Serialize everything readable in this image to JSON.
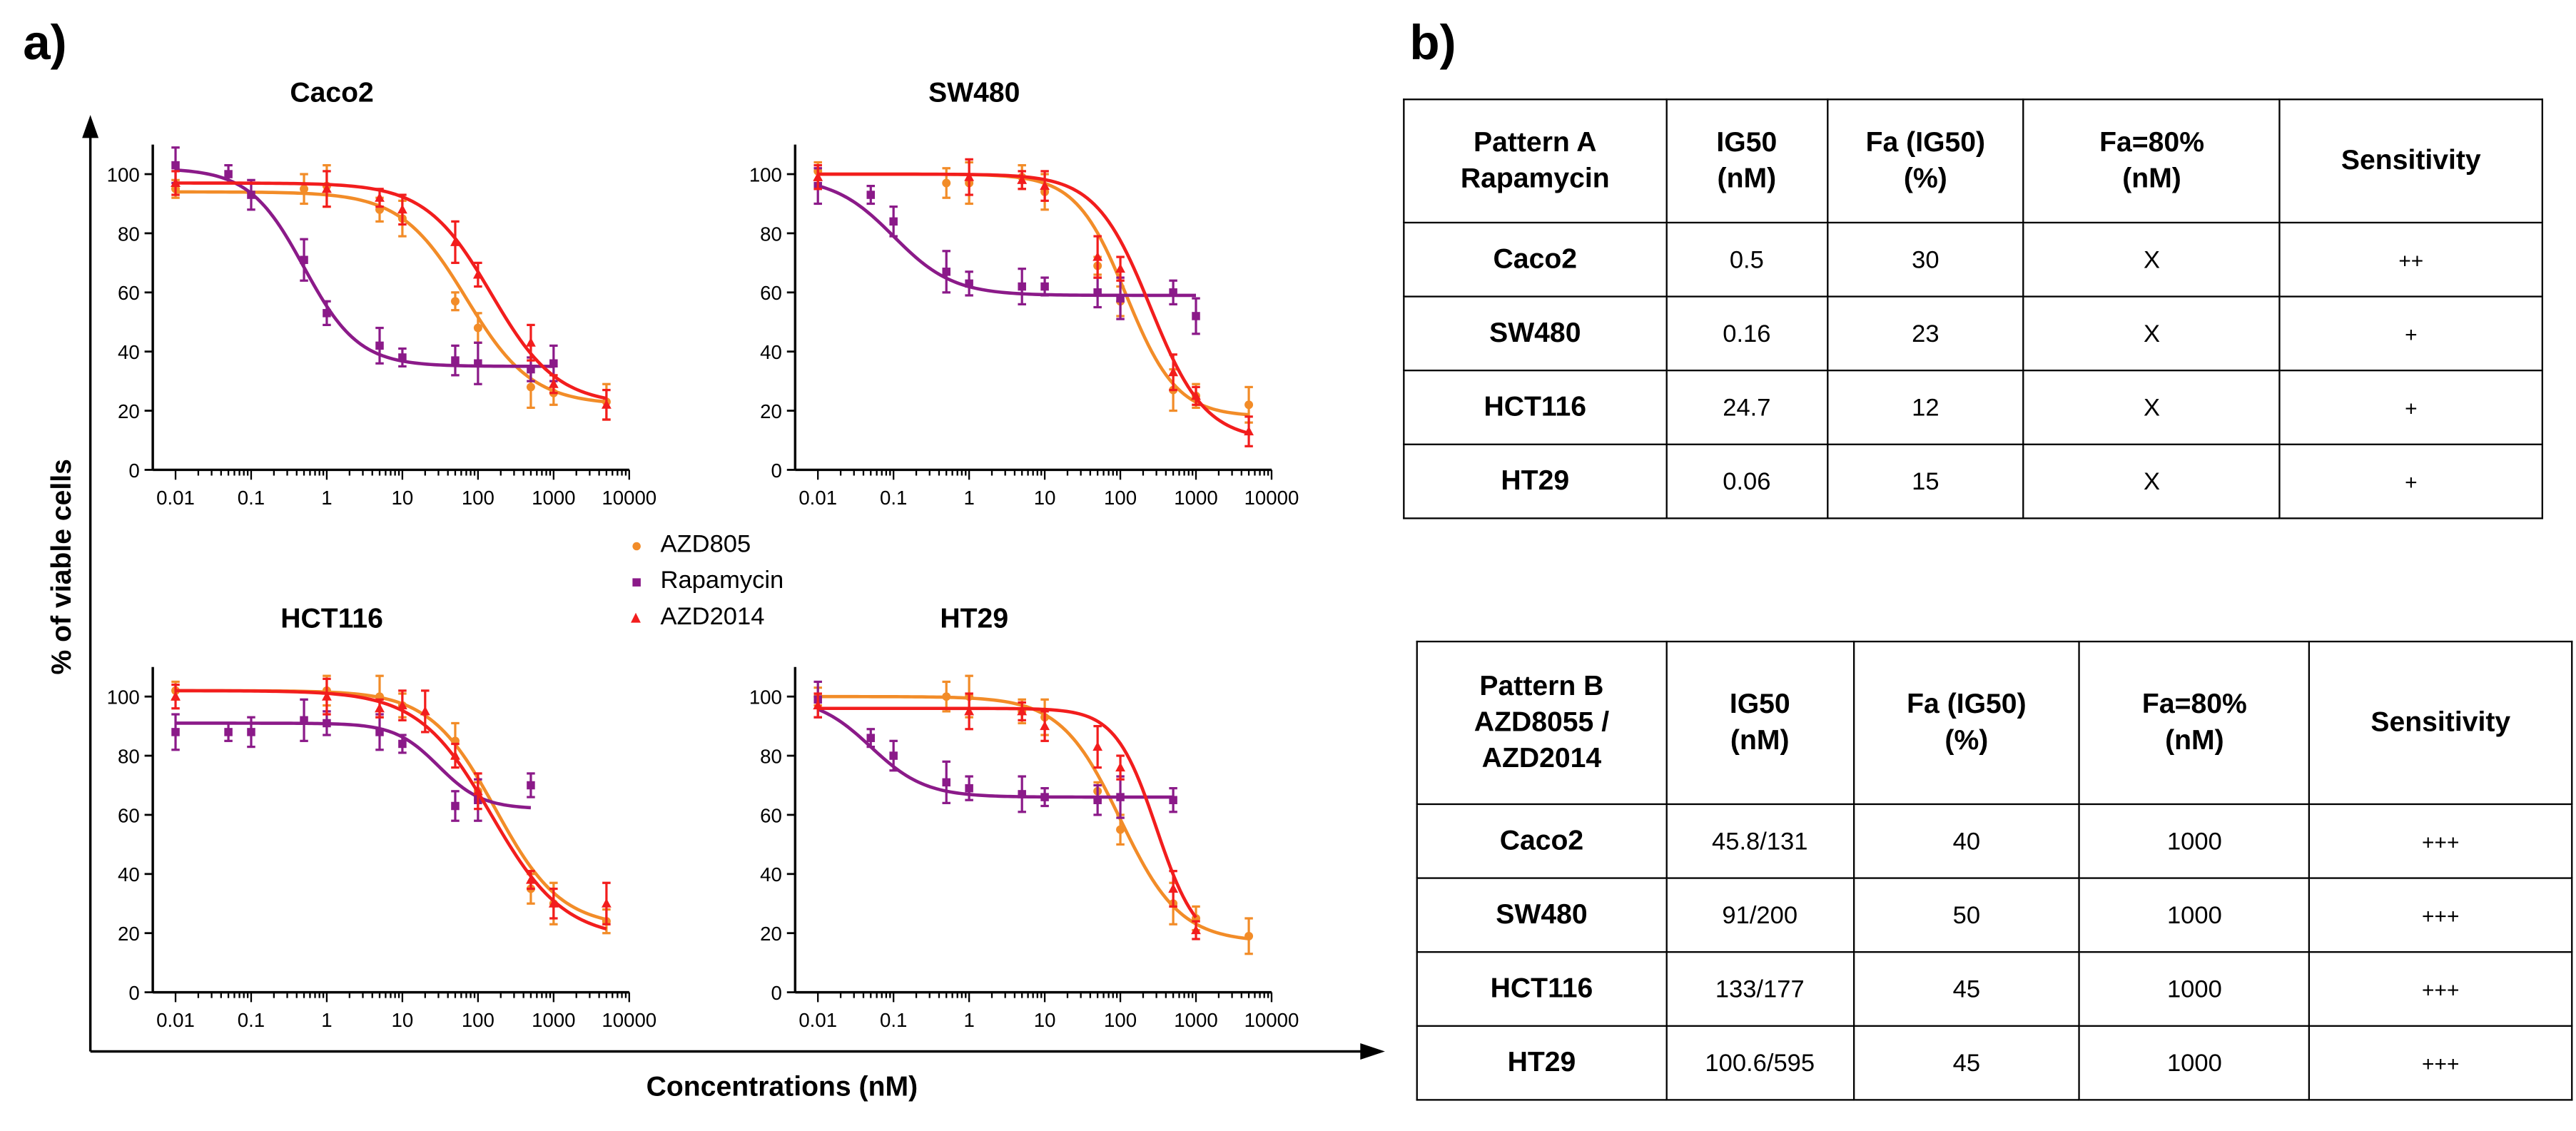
{
  "panel_a_label": "a)",
  "panel_b_label": "b)",
  "ylabel": "% of viable cells",
  "xlabel": "Concentrations (nM)",
  "legend": [
    {
      "label": "AZD805",
      "color": "#f28c28",
      "marker": "circle"
    },
    {
      "label": "Rapamycin",
      "color": "#8b1a89",
      "marker": "square"
    },
    {
      "label": "AZD2014",
      "color": "#f21d1d",
      "marker": "triangle"
    }
  ],
  "colors": {
    "azd8055": "#f28c28",
    "rapamycin": "#8b1a89",
    "azd2014": "#f21d1d"
  },
  "chart_data": [
    {
      "type": "line",
      "title": "Caco2",
      "xscale": "log",
      "xlim": [
        0.005,
        10000
      ],
      "ylim": [
        0,
        110
      ],
      "xticks": [
        "0.01",
        "0.1",
        "1",
        "10",
        "100",
        "1000",
        "10000"
      ],
      "yticks": [
        "0",
        "20",
        "40",
        "60",
        "80",
        "100"
      ],
      "series": [
        {
          "name": "AZD805",
          "x": [
            0.01,
            0.5,
            1,
            5,
            10,
            50,
            100,
            500,
            1000,
            5000
          ],
          "y": [
            95,
            95,
            96,
            88,
            85,
            57,
            48,
            28,
            26,
            23
          ],
          "curve": {
            "top": 94,
            "bottom": 22,
            "ic50": 70,
            "hill": 1.0
          }
        },
        {
          "name": "Rapamycin",
          "x": [
            0.01,
            0.05,
            0.1,
            0.5,
            1,
            5,
            10,
            50,
            100,
            500,
            1000
          ],
          "y": [
            103,
            100,
            93,
            71,
            53,
            42,
            38,
            37,
            36,
            34,
            36
          ],
          "curve": {
            "top": 102,
            "bottom": 35,
            "ic50": 0.5,
            "hill": 1.2
          }
        },
        {
          "name": "AZD2014",
          "x": [
            0.01,
            1,
            5,
            10,
            50,
            100,
            500,
            1000,
            5000
          ],
          "y": [
            97,
            95,
            92,
            88,
            77,
            66,
            43,
            29,
            22
          ],
          "curve": {
            "top": 97,
            "bottom": 22,
            "ic50": 150,
            "hill": 1.0
          }
        }
      ]
    },
    {
      "type": "line",
      "title": "SW480",
      "xscale": "log",
      "xlim": [
        0.005,
        10000
      ],
      "ylim": [
        0,
        110
      ],
      "xticks": [
        "0.01",
        "0.1",
        "1",
        "10",
        "100",
        "1000",
        "10000"
      ],
      "yticks": [
        "0",
        "20",
        "40",
        "60",
        "80",
        "100"
      ],
      "series": [
        {
          "name": "AZD805",
          "x": [
            0.01,
            0.5,
            1,
            5,
            10,
            50,
            100,
            500,
            1000,
            5000
          ],
          "y": [
            101,
            97,
            97,
            99,
            94,
            69,
            57,
            27,
            25,
            22
          ],
          "curve": {
            "top": 100,
            "bottom": 18,
            "ic50": 120,
            "hill": 1.3
          }
        },
        {
          "name": "Rapamycin",
          "x": [
            0.01,
            0.05,
            0.1,
            0.5,
            1,
            5,
            10,
            50,
            100,
            500,
            1000
          ],
          "y": [
            96,
            93,
            84,
            67,
            63,
            62,
            62,
            60,
            58,
            60,
            52
          ],
          "curve": {
            "top": 99,
            "bottom": 59,
            "ic50": 0.1,
            "hill": 1.1
          }
        },
        {
          "name": "AZD2014",
          "x": [
            0.01,
            1,
            5,
            10,
            50,
            100,
            500,
            1000,
            5000
          ],
          "y": [
            99,
            99,
            98,
            96,
            72,
            68,
            33,
            25,
            13
          ],
          "curve": {
            "top": 100,
            "bottom": 10,
            "ic50": 250,
            "hill": 1.2
          }
        }
      ]
    },
    {
      "type": "line",
      "title": "HCT116",
      "xscale": "log",
      "xlim": [
        0.005,
        10000
      ],
      "ylim": [
        0,
        110
      ],
      "xticks": [
        "0.01",
        "0.1",
        "1",
        "10",
        "100",
        "1000",
        "10000"
      ],
      "yticks": [
        "0",
        "20",
        "40",
        "60",
        "80",
        "100"
      ],
      "series": [
        {
          "name": "AZD805",
          "x": [
            0.01,
            1,
            5,
            10,
            50,
            100,
            500,
            1000,
            5000
          ],
          "y": [
            102,
            102,
            100,
            97,
            85,
            68,
            35,
            30,
            24
          ],
          "curve": {
            "top": 102,
            "bottom": 22,
            "ic50": 170,
            "hill": 1.0
          }
        },
        {
          "name": "Rapamycin",
          "x": [
            0.01,
            0.05,
            0.1,
            0.5,
            1,
            5,
            10,
            50,
            100,
            500
          ],
          "y": [
            88,
            88,
            88,
            92,
            91,
            88,
            84,
            63,
            65,
            70
          ],
          "curve": {
            "top": 91,
            "bottom": 62,
            "ic50": 30,
            "hill": 1.5
          }
        },
        {
          "name": "AZD2014",
          "x": [
            0.01,
            1,
            5,
            10,
            20,
            50,
            100,
            500,
            1000,
            5000
          ],
          "y": [
            100,
            100,
            96,
            97,
            95,
            80,
            68,
            38,
            30,
            30
          ],
          "curve": {
            "top": 102,
            "bottom": 18,
            "ic50": 150,
            "hill": 0.9
          }
        }
      ]
    },
    {
      "type": "line",
      "title": "HT29",
      "xscale": "log",
      "xlim": [
        0.005,
        10000
      ],
      "ylim": [
        0,
        110
      ],
      "xticks": [
        "0.01",
        "0.1",
        "1",
        "10",
        "100",
        "1000",
        "10000"
      ],
      "yticks": [
        "0",
        "20",
        "40",
        "60",
        "80",
        "100"
      ],
      "series": [
        {
          "name": "AZD805",
          "x": [
            0.01,
            0.5,
            1,
            5,
            10,
            50,
            100,
            500,
            1000,
            5000
          ],
          "y": [
            100,
            100,
            100,
            95,
            93,
            68,
            55,
            30,
            25,
            19
          ],
          "curve": {
            "top": 100,
            "bottom": 17,
            "ic50": 100,
            "hill": 1.1
          }
        },
        {
          "name": "Rapamycin",
          "x": [
            0.01,
            0.05,
            0.1,
            0.5,
            1,
            5,
            10,
            50,
            100,
            500
          ],
          "y": [
            99,
            86,
            80,
            71,
            69,
            67,
            66,
            65,
            66,
            65
          ],
          "curve": {
            "top": 100,
            "bottom": 66,
            "ic50": 0.05,
            "hill": 1.2
          }
        },
        {
          "name": "AZD2014",
          "x": [
            0.01,
            1,
            5,
            10,
            50,
            100,
            500,
            1000
          ],
          "y": [
            97,
            95,
            95,
            90,
            83,
            76,
            35,
            21
          ],
          "curve": {
            "top": 96,
            "bottom": 15,
            "ic50": 300,
            "hill": 1.6
          }
        }
      ]
    }
  ],
  "table_a": {
    "headers": [
      "Pattern A\nRapamycin",
      "IG50\n(nM)",
      "Fa (IG50)\n(%)",
      "Fa=80%\n(nM)",
      "Sensitivity"
    ],
    "rows": [
      [
        "Caco2",
        "0.5",
        "30",
        "X",
        "++"
      ],
      [
        "SW480",
        "0.16",
        "23",
        "X",
        "+"
      ],
      [
        "HCT116",
        "24.7",
        "12",
        "X",
        "+"
      ],
      [
        "HT29",
        "0.06",
        "15",
        "X",
        "+"
      ]
    ]
  },
  "table_b": {
    "headers": [
      "Pattern B\nAZD8055 /\nAZD2014",
      "IG50\n(nM)",
      "Fa (IG50)\n(%)",
      "Fa=80%\n(nM)",
      "Sensitivity"
    ],
    "rows": [
      [
        "Caco2",
        "45.8/131",
        "40",
        "1000",
        "+++"
      ],
      [
        "SW480",
        "91/200",
        "50",
        "1000",
        "+++"
      ],
      [
        "HCT116",
        "133/177",
        "45",
        "1000",
        "+++"
      ],
      [
        "HT29",
        "100.6/595",
        "45",
        "1000",
        "+++"
      ]
    ]
  }
}
